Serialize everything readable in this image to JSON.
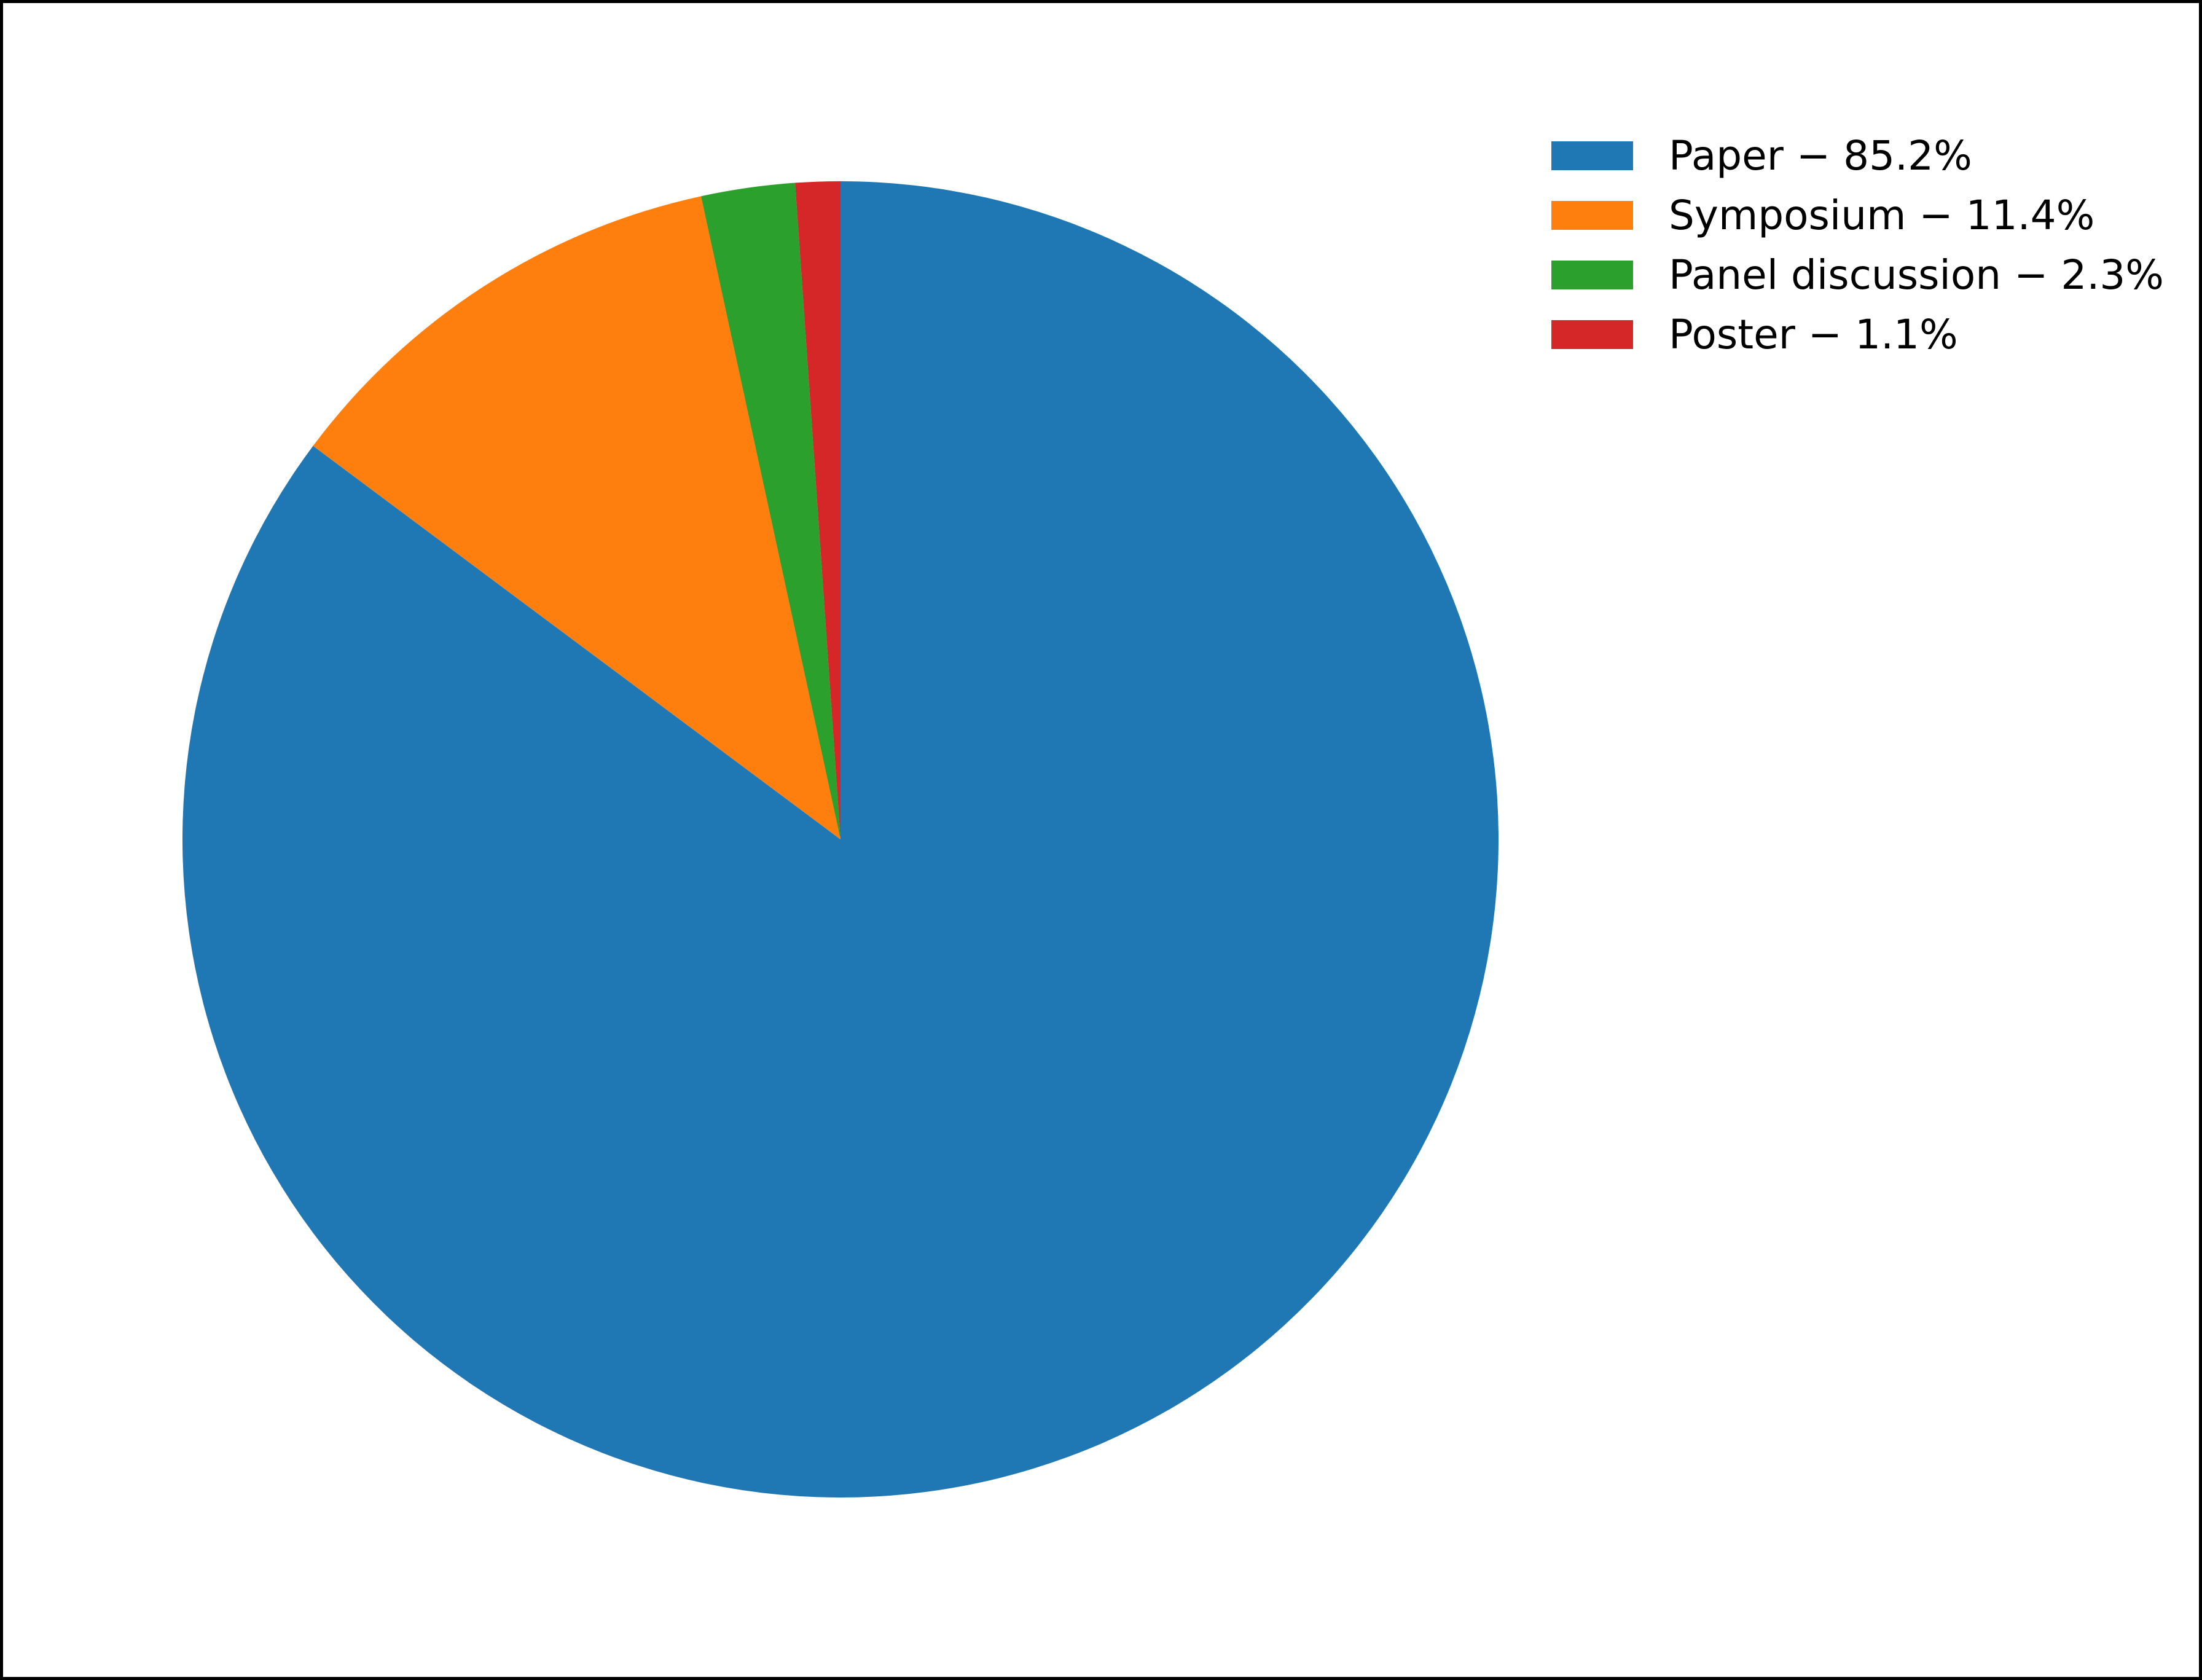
{
  "chart_data": {
    "type": "pie",
    "title": "",
    "legend_position": "upper right",
    "legend_separator": "−",
    "start_angle": "12 o'clock",
    "direction": "clockwise",
    "slices": [
      {
        "label": "Paper",
        "pct": 85.2,
        "color": "#1f77b4"
      },
      {
        "label": "Symposium",
        "pct": 11.4,
        "color": "#ff7f0e"
      },
      {
        "label": "Panel discussion",
        "pct": 2.3,
        "color": "#2ca02c"
      },
      {
        "label": "Poster",
        "pct": 1.1,
        "color": "#d62728"
      }
    ],
    "legend_labels": [
      "Paper − 85.2%",
      "Symposium − 11.4%",
      "Panel discussion − 2.3%",
      "Poster − 1.1%"
    ]
  }
}
